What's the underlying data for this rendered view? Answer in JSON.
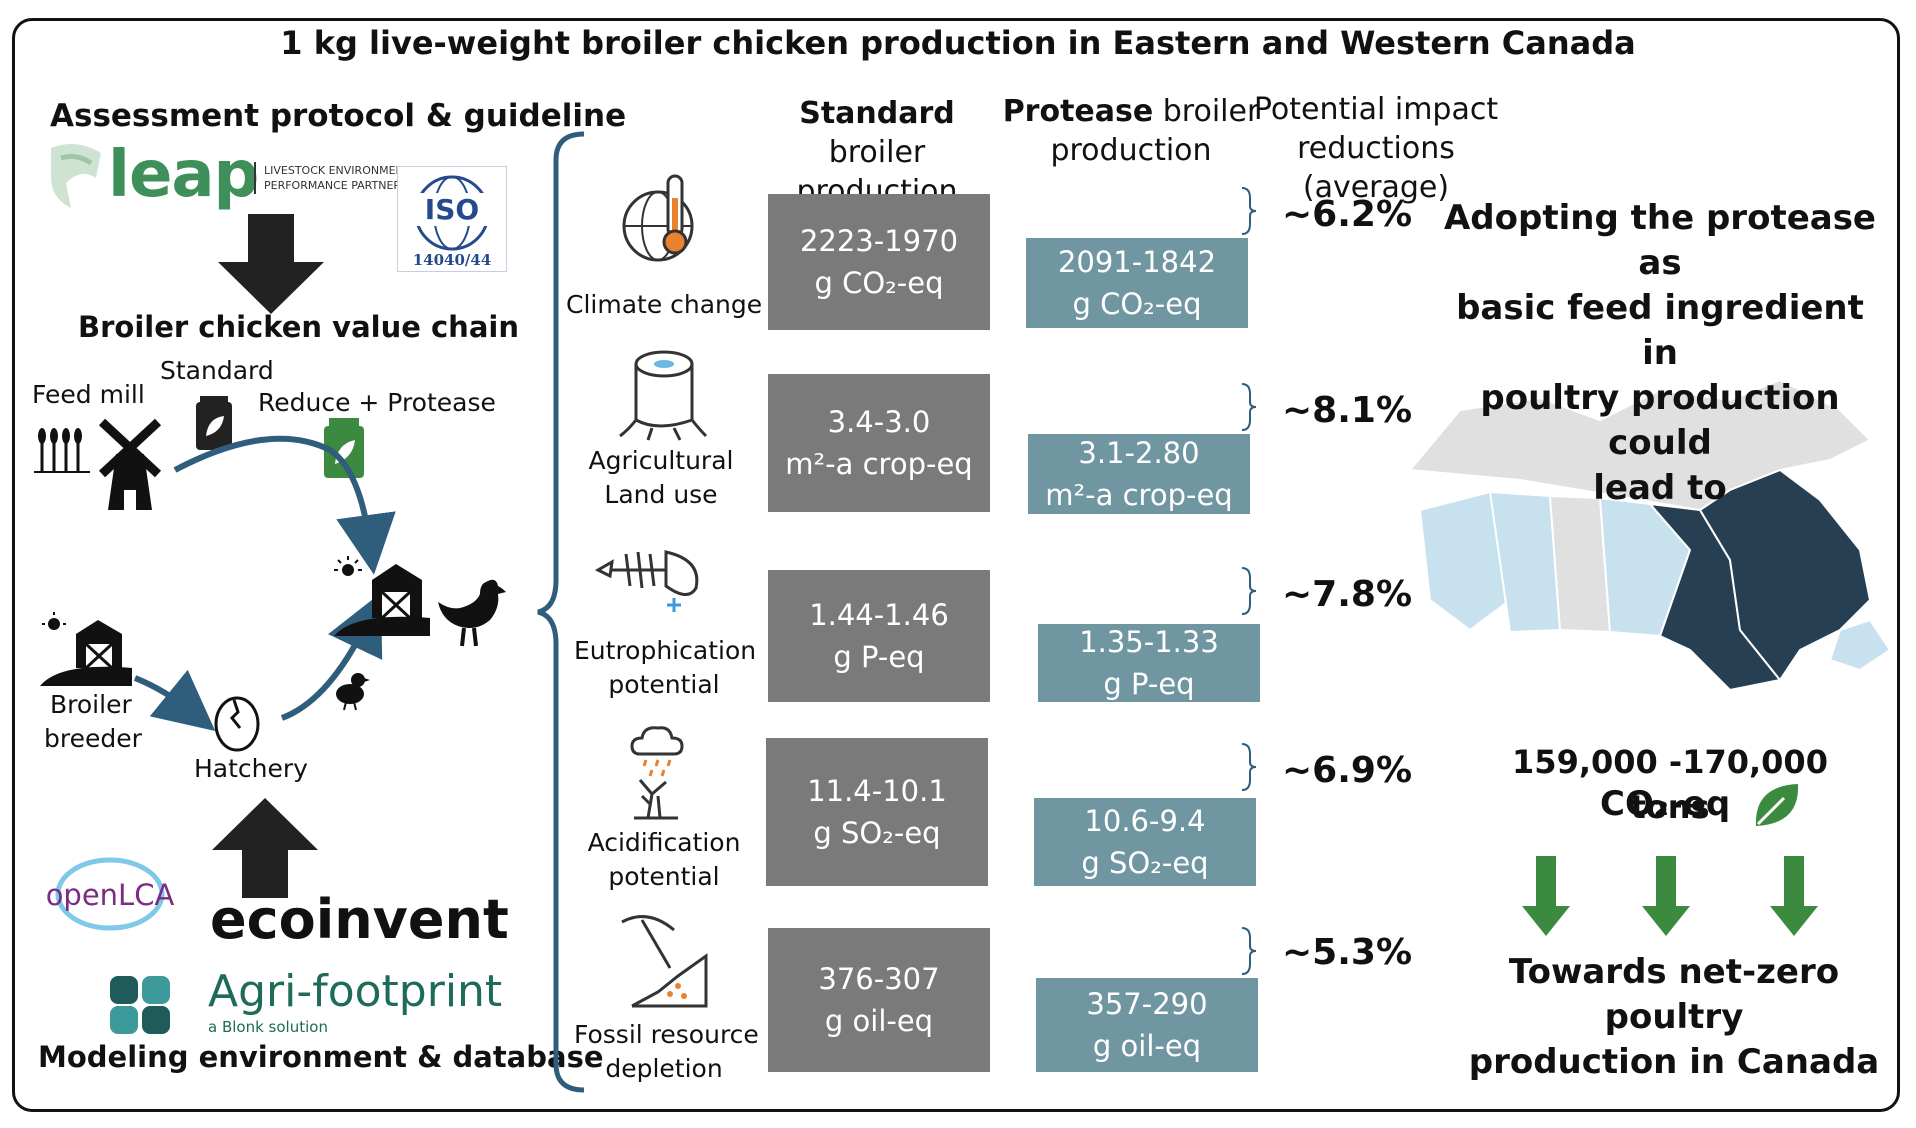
{
  "title": "1 kg live-weight broiler chicken production in Eastern and Western Canada",
  "left": {
    "protocol_heading": "Assessment protocol & guideline",
    "leap_logo": "leap",
    "leap_caption_1": "LIVESTOCK ENVIRONMENT",
    "leap_caption_2": "PERFORMANCE PARTNERS",
    "iso_logo": "ISO",
    "iso_number": "14040/44",
    "value_chain_heading": "Broiler chicken value chain",
    "feed_mill": "Feed mill",
    "standard": "Standard",
    "reduce_protease": "Reduce + Protease",
    "broiler_breeder_1": "Broiler",
    "broiler_breeder_2": "breeder",
    "hatchery": "Hatchery",
    "openlca": "openLCA",
    "ecoinvent": "ecoinvent",
    "agrifootprint": "Agri-footprint",
    "agrifootprint_sub": "a Blonk solution",
    "modeling_heading": "Modeling environment & database"
  },
  "columns": {
    "standard_bold": "Standard",
    "standard_rest": "broiler",
    "standard_line2": "production",
    "protease_bold": "Protease",
    "protease_rest": "broiler",
    "protease_line2": "production",
    "reduction_line1": "Potential impact",
    "reduction_line2": "reductions (average)"
  },
  "impacts": [
    {
      "label1": "Climate change",
      "label2": "",
      "std_value": "2223-1970",
      "std_unit": "g CO₂-eq",
      "pro_value": "2091-1842",
      "pro_unit": "g CO₂-eq",
      "reduction": "~6.2%"
    },
    {
      "label1": "Agricultural",
      "label2": "Land use",
      "std_value": "3.4-3.0",
      "std_unit": "m²-a crop-eq",
      "pro_value": "3.1-2.80",
      "pro_unit": "m²-a crop-eq",
      "reduction": "~8.1%"
    },
    {
      "label1": "Eutrophication",
      "label2": "potential",
      "std_value": "1.44-1.46",
      "std_unit": "g P-eq",
      "pro_value": "1.35-1.33",
      "pro_unit": "g P-eq",
      "reduction": "~7.8%"
    },
    {
      "label1": "Acidification",
      "label2": "potential",
      "std_value": "11.4-10.1",
      "std_unit": "g SO₂-eq",
      "pro_value": "10.6-9.4",
      "pro_unit": "g SO₂-eq",
      "reduction": "~6.9%"
    },
    {
      "label1": "Fossil resource",
      "label2": "depletion",
      "std_value": "376-307",
      "std_unit": "g oil-eq",
      "pro_value": "357-290",
      "pro_unit": "g oil-eq",
      "reduction": "~5.3%"
    }
  ],
  "right": {
    "adopting_1": "Adopting the protease as",
    "adopting_2": "basic feed ingredient in",
    "adopting_3": "poultry production could",
    "adopting_4": "lead to",
    "tons": "159,000 -170,000 tons",
    "co2": "CO₂-eq",
    "towards_1": "Towards net-zero poultry",
    "towards_2": "production in Canada"
  },
  "colors": {
    "standard_box": "#7a7a7a",
    "protease_box": "#6f96a1",
    "arrow_blue": "#2f5d7c",
    "map_dark": "#263f52",
    "map_light": "#c7e1ee",
    "map_grey": "#e0e0e0",
    "green": "#3c8a3f",
    "leap_green": "#3f8f5a"
  }
}
